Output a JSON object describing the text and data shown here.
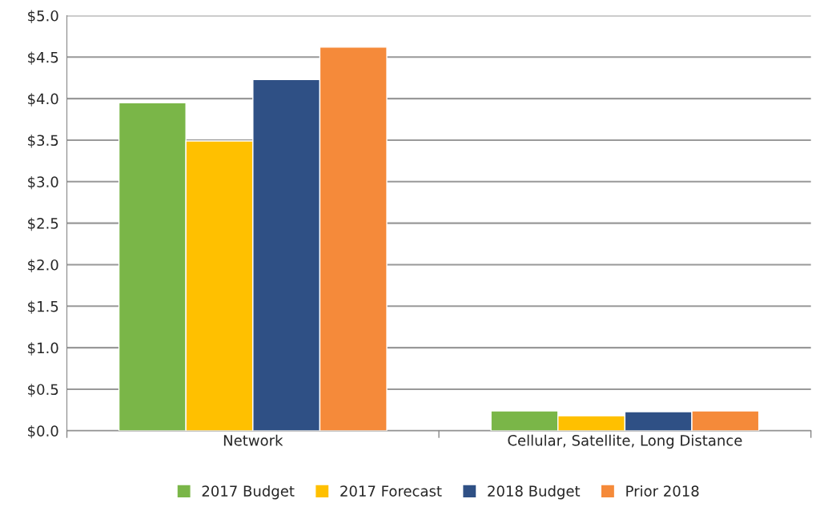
{
  "chart_data": {
    "type": "bar",
    "categories": [
      "Network",
      "Cellular, Satellite, Long Distance"
    ],
    "series": [
      {
        "name": "2017 Budget",
        "color": "#7ab648",
        "values": [
          3.95,
          0.24
        ]
      },
      {
        "name": "2017 Forecast",
        "color": "#ffc000",
        "values": [
          3.49,
          0.18
        ]
      },
      {
        "name": "2018 Budget",
        "color": "#2f5085",
        "values": [
          4.23,
          0.23
        ]
      },
      {
        "name": "Prior 2018",
        "color": "#f58a3a",
        "values": [
          4.62,
          0.24
        ]
      }
    ],
    "ylim": [
      0,
      5
    ],
    "yticks": [
      {
        "value": 0,
        "label": "$0.0"
      },
      {
        "value": 0.5,
        "label": "$0.5"
      },
      {
        "value": 1,
        "label": "$1.0"
      },
      {
        "value": 1.5,
        "label": "$1.5"
      },
      {
        "value": 2,
        "label": "$2.0"
      },
      {
        "value": 2.5,
        "label": "$2.5"
      },
      {
        "value": 3,
        "label": "$3.0"
      },
      {
        "value": 3.5,
        "label": "$3.5"
      },
      {
        "value": 4,
        "label": "$4.0"
      },
      {
        "value": 4.5,
        "label": "$4.5"
      },
      {
        "value": 5,
        "label": "$5.0"
      }
    ],
    "grid": "y",
    "legend": "bottom"
  }
}
